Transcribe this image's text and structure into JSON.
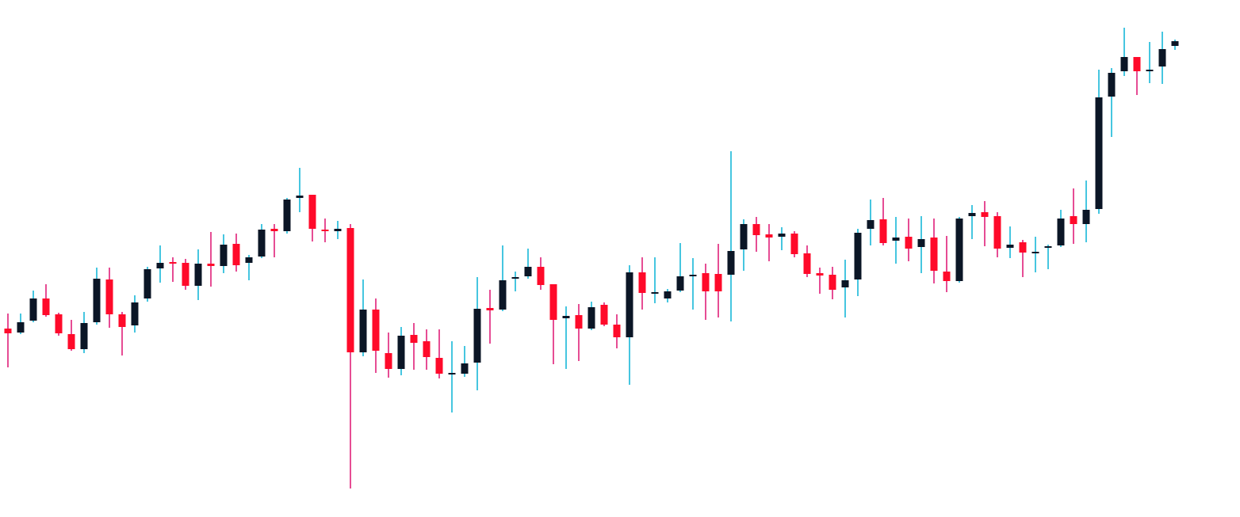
{
  "chart_data": {
    "type": "candlestick",
    "open": [
      238,
      233,
      248,
      276,
      256,
      231,
      212,
      246,
      300,
      256,
      242,
      276,
      314,
      322,
      321,
      292,
      320,
      317,
      345,
      321,
      329,
      364,
      361,
      403,
      407,
      363,
      361,
      365,
      208,
      262,
      207,
      187,
      230,
      222,
      201,
      181,
      181,
      195,
      264,
      262,
      301,
      304,
      316,
      294,
      251,
      255,
      238,
      268,
      243,
      227,
      309,
      282,
      276,
      286,
      304,
      308,
      307,
      306,
      338,
      370,
      357,
      354,
      358,
      333,
      308,
      306,
      290,
      300,
      364,
      376,
      349,
      354,
      341,
      353,
      310,
      298,
      380,
      385,
      380,
      340,
      347,
      333,
      340,
      343,
      380,
      370,
      389,
      531,
      563,
      581,
      563,
      569,
      595
    ],
    "high": [
      257,
      257,
      286,
      294,
      258,
      249,
      259,
      315,
      315,
      259,
      280,
      316,
      343,
      328,
      326,
      338,
      360,
      357,
      358,
      331,
      370,
      370,
      403,
      441,
      407,
      377,
      374,
      370,
      300,
      276,
      233,
      240,
      245,
      237,
      237,
      222,
      216,
      303,
      287,
      343,
      310,
      339,
      328,
      294,
      266,
      269,
      272,
      271,
      256,
      318,
      328,
      328,
      288,
      346,
      327,
      320,
      345,
      462,
      376,
      379,
      370,
      366,
      361,
      343,
      315,
      316,
      325,
      364,
      401,
      403,
      379,
      377,
      380,
      377,
      355,
      379,
      394,
      399,
      385,
      367,
      350,
      354,
      344,
      388,
      415,
      425,
      565,
      567,
      618,
      581,
      600,
      613,
      603
    ],
    "low": [
      189,
      231,
      246,
      253,
      229,
      210,
      207,
      243,
      239,
      204,
      233,
      272,
      296,
      297,
      287,
      274,
      291,
      308,
      310,
      299,
      327,
      328,
      358,
      385,
      348,
      347,
      351,
      36,
      203,
      182,
      176,
      179,
      186,
      186,
      175,
      132,
      177,
      160,
      219,
      260,
      285,
      301,
      287,
      193,
      187,
      197,
      236,
      241,
      213,
      167,
      262,
      270,
      271,
      284,
      262,
      249,
      252,
      247,
      311,
      335,
      323,
      337,
      328,
      303,
      282,
      275,
      252,
      279,
      343,
      343,
      320,
      323,
      308,
      295,
      284,
      296,
      351,
      342,
      328,
      327,
      303,
      309,
      313,
      341,
      345,
      347,
      383,
      480,
      557,
      533,
      548,
      547,
      590
    ],
    "close": [
      232,
      246,
      276,
      255,
      232,
      212,
      245,
      301,
      256,
      240,
      271,
      313,
      321,
      320,
      292,
      320,
      317,
      344,
      318,
      328,
      363,
      361,
      401,
      406,
      364,
      361,
      364,
      208,
      262,
      210,
      187,
      229,
      220,
      202,
      181,
      182,
      194,
      263,
      261,
      299,
      303,
      316,
      293,
      249,
      254,
      238,
      265,
      243,
      227,
      309,
      283,
      284,
      285,
      304,
      306,
      285,
      285,
      336,
      370,
      356,
      353,
      358,
      332,
      307,
      305,
      287,
      299,
      359,
      375,
      346,
      353,
      339,
      351,
      311,
      298,
      377,
      384,
      379,
      339,
      344,
      334,
      335,
      342,
      377,
      370,
      388,
      530,
      561,
      581,
      563,
      565,
      591,
      601
    ],
    "up_color": "#0b1626",
    "down_color": "#ff0a2a",
    "up_wick_color": "#18b8d8",
    "down_wick_color": "#e0207a",
    "ylim": [
      0,
      653
    ]
  }
}
